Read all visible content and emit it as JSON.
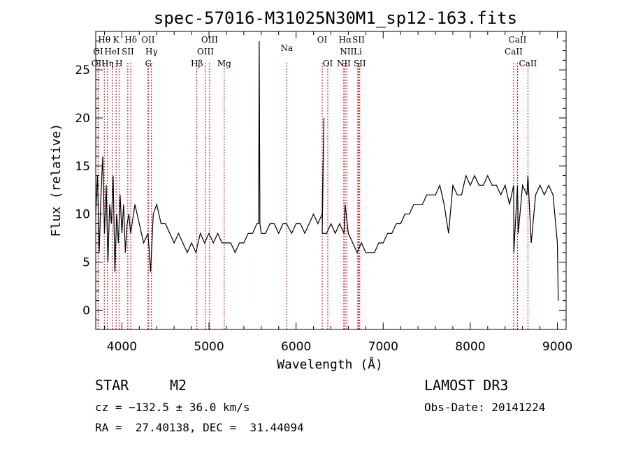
{
  "chart_data": {
    "type": "line",
    "title": "spec-57016-M31025N30M1_sp12-163.fits",
    "xlabel": "Wavelength (Å)",
    "ylabel": "Flux (relative)",
    "xlim": [
      3700,
      9100
    ],
    "ylim": [
      -2,
      29
    ],
    "xticks": [
      4000,
      5000,
      6000,
      7000,
      8000,
      9000
    ],
    "yticks": [
      0,
      5,
      10,
      15,
      20,
      25
    ],
    "grid": false,
    "series": [
      {
        "name": "flux",
        "x": [
          3700,
          3720,
          3740,
          3760,
          3780,
          3800,
          3820,
          3840,
          3860,
          3880,
          3900,
          3920,
          3940,
          3960,
          3980,
          4000,
          4020,
          4040,
          4060,
          4080,
          4100,
          4150,
          4200,
          4250,
          4300,
          4330,
          4360,
          4400,
          4450,
          4500,
          4550,
          4600,
          4650,
          4700,
          4750,
          4800,
          4850,
          4900,
          4950,
          5000,
          5050,
          5100,
          5150,
          5200,
          5250,
          5300,
          5350,
          5400,
          5450,
          5500,
          5550,
          5570,
          5577,
          5585,
          5600,
          5650,
          5700,
          5750,
          5800,
          5850,
          5890,
          5950,
          6000,
          6050,
          6100,
          6150,
          6200,
          6250,
          6300,
          6320,
          6300,
          6350,
          6400,
          6450,
          6500,
          6550,
          6563,
          6600,
          6650,
          6700,
          6750,
          6800,
          6850,
          6900,
          6950,
          7000,
          7050,
          7100,
          7150,
          7200,
          7250,
          7300,
          7350,
          7400,
          7450,
          7500,
          7550,
          7600,
          7650,
          7700,
          7750,
          7800,
          7850,
          7900,
          7950,
          8000,
          8050,
          8100,
          8150,
          8200,
          8250,
          8300,
          8350,
          8400,
          8450,
          8498,
          8500,
          8542,
          8550,
          8600,
          8650,
          8662,
          8700,
          8750,
          8800,
          8850,
          8900,
          8950,
          9000,
          9010
        ],
        "values": [
          10,
          14,
          6,
          12,
          16,
          8,
          13,
          5,
          11,
          9,
          14,
          4,
          10,
          7,
          12,
          8,
          11,
          6,
          9,
          10,
          8,
          11,
          9,
          7,
          8,
          4,
          10,
          11,
          9,
          9,
          8,
          7,
          8,
          7,
          6,
          7,
          6,
          8,
          7,
          8,
          7,
          8,
          7,
          7,
          7,
          6,
          7,
          7,
          8,
          8,
          9,
          9,
          28,
          9,
          8,
          8,
          9,
          9,
          8,
          9,
          9,
          8,
          9,
          9,
          8,
          9,
          10,
          9,
          10,
          20,
          8,
          8,
          9,
          8,
          9,
          8,
          11,
          8,
          7,
          6,
          7,
          6,
          6,
          6,
          7,
          7,
          8,
          8,
          9,
          9,
          10,
          10,
          11,
          11,
          11,
          12,
          12,
          12,
          13,
          11,
          8,
          13,
          12,
          12,
          14,
          13,
          14,
          13,
          13,
          14,
          13,
          13,
          12,
          13,
          11,
          13,
          6,
          13,
          8,
          13,
          12,
          14,
          7,
          12,
          13,
          12,
          13,
          12,
          7,
          1
        ],
        "color": "#000000"
      }
    ],
    "line_markers": [
      {
        "label": "Hθ",
        "x": 3798,
        "row": 1
      },
      {
        "label": "K",
        "x": 3934,
        "row": 1
      },
      {
        "label": "Hδ",
        "x": 4102,
        "row": 1
      },
      {
        "label": "OII",
        "x": 4300,
        "row": 1
      },
      {
        "label": "OIII",
        "x": 5007,
        "row": 1
      },
      {
        "label": "OI",
        "x": 6300,
        "row": 1
      },
      {
        "label": "Hα",
        "x": 6563,
        "row": 1
      },
      {
        "label": "SII",
        "x": 6717,
        "row": 1
      },
      {
        "label": "CaII",
        "x": 8542,
        "row": 1
      },
      {
        "label": "OI",
        "x": 3727,
        "row": 2
      },
      {
        "label": "HeI",
        "x": 3889,
        "row": 2
      },
      {
        "label": "SII",
        "x": 4068,
        "row": 2
      },
      {
        "label": "Hγ",
        "x": 4340,
        "row": 2
      },
      {
        "label": "OIII",
        "x": 4959,
        "row": 2
      },
      {
        "label": "NII",
        "x": 6583,
        "row": 2
      },
      {
        "label": "Li",
        "x": 6708,
        "row": 2
      },
      {
        "label": "CaII",
        "x": 8498,
        "row": 2
      },
      {
        "label": "OII",
        "x": 3727,
        "row": 3
      },
      {
        "label": "Hη",
        "x": 3835,
        "row": 3
      },
      {
        "label": "H",
        "x": 3968,
        "row": 3
      },
      {
        "label": "G",
        "x": 4304,
        "row": 3
      },
      {
        "label": "Hβ",
        "x": 4861,
        "row": 3
      },
      {
        "label": "Mg",
        "x": 5175,
        "row": 3
      },
      {
        "label": "Na",
        "x": 5893,
        "row": 1.7
      },
      {
        "label": "OI",
        "x": 6364,
        "row": 3
      },
      {
        "label": "NII",
        "x": 6548,
        "row": 3
      },
      {
        "label": "SII",
        "x": 6731,
        "row": 3
      },
      {
        "label": "CaII",
        "x": 8662,
        "row": 3
      }
    ]
  },
  "info": {
    "object_class": "STAR",
    "subclass": "M2",
    "survey": "LAMOST DR3",
    "cz": "cz = −132.5 ± 36.0 km/s",
    "obs_date": "Obs-Date: 20141224",
    "coords": "RA =  27.40138, DEC =  31.44094"
  }
}
